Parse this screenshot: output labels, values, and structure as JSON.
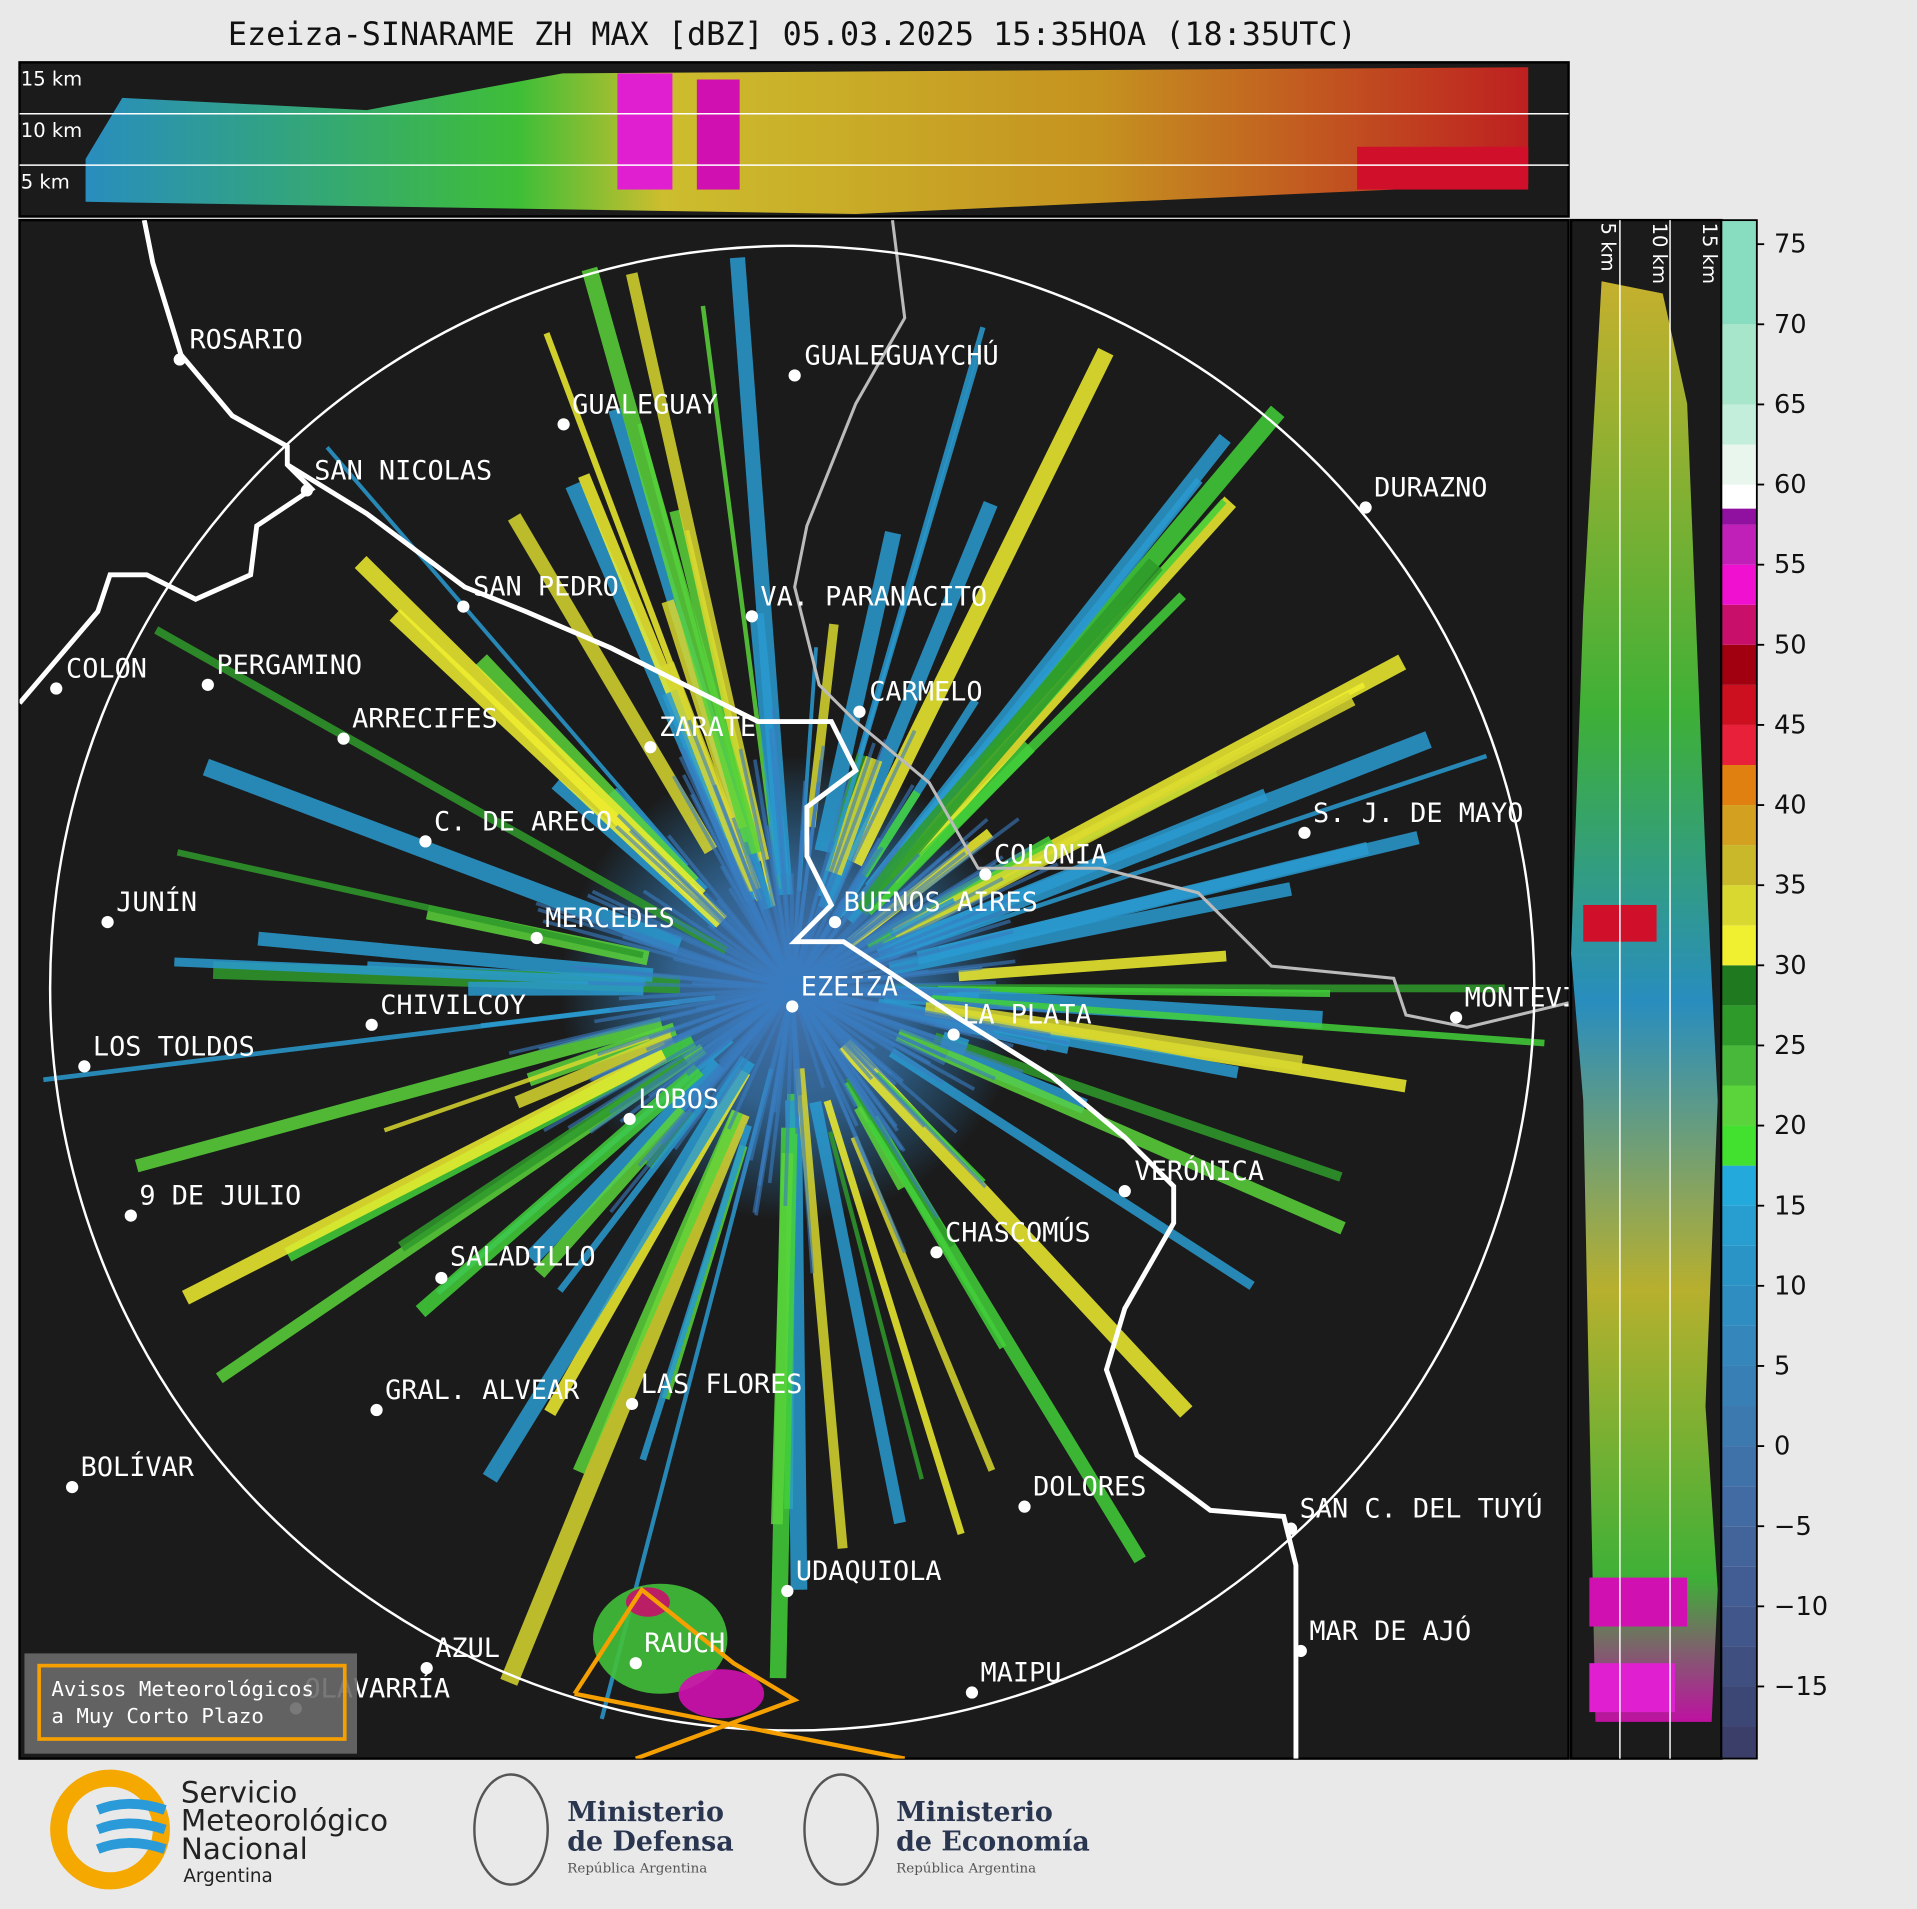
{
  "title": "Ezeiza-SINARAME ZH MAX [dBZ] 05.03.2025 15:35HOA (18:35UTC)",
  "top_panel": {
    "height_labels": [
      "15 km",
      "10 km",
      "5 km"
    ]
  },
  "side_panel": {
    "height_labels": [
      "5 km",
      "10 km",
      "15 km"
    ]
  },
  "cities": [
    "ROSARIO",
    "GUALEGUAYCHÚ",
    "GUALEGUAY",
    "SAN NICOLAS",
    "DURAZNO",
    "SAN PEDRO",
    "VA. PARANACITO",
    "COLON",
    "PERGAMINO",
    "CARMELO",
    "ARRECIFES",
    "ZARATE",
    "C. DE ARECO",
    "S. J. DE MAYO",
    "COLONIA",
    "JUNÍN",
    "BUENOS AIRES",
    "MERCEDES",
    "EZEIZA",
    "MONTEVIDEO",
    "CHIVILCOY",
    "LA PLATA",
    "LOS TOLDOS",
    "LOBOS",
    "VERÓNICA",
    "9 DE JULIO",
    "CHASCOMÚS",
    "SALADILLO",
    "GRAL. ALVEAR",
    "LAS FLORES",
    "BOLÍVAR",
    "DOLORES",
    "SAN C. DEL TUYÚ",
    "UDAQUIOLA",
    "MAR DE AJÓ",
    "AZUL",
    "RAUCH",
    "OLAVARRÍA",
    "MAIPU"
  ],
  "colorbar": {
    "lim": [
      -19.5,
      76.5
    ],
    "ticks": [
      75,
      70,
      65,
      60,
      55,
      50,
      45,
      40,
      35,
      30,
      25,
      20,
      15,
      10,
      5,
      0,
      {
        "value": -5,
        "label": "−5"
      },
      {
        "value": -10,
        "label": "−10"
      },
      {
        "value": -15,
        "label": "−15"
      }
    ],
    "bands": [
      {
        "min": -19.5,
        "max": -17.5,
        "color": "#3a3e68"
      },
      {
        "min": -17.5,
        "max": -15,
        "color": "#3d4775"
      },
      {
        "min": -15,
        "max": -12.5,
        "color": "#3f4f80"
      },
      {
        "min": -12.5,
        "max": -10,
        "color": "#41568a"
      },
      {
        "min": -10,
        "max": -7.5,
        "color": "#425d93"
      },
      {
        "min": -7.5,
        "max": -5,
        "color": "#43649b"
      },
      {
        "min": -5,
        "max": -2.5,
        "color": "#416ba2"
      },
      {
        "min": -2.5,
        "max": 0,
        "color": "#3f72a9"
      },
      {
        "min": 0,
        "max": 2.5,
        "color": "#3c79af"
      },
      {
        "min": 2.5,
        "max": 5,
        "color": "#387fb5"
      },
      {
        "min": 5,
        "max": 7.5,
        "color": "#3486bb"
      },
      {
        "min": 7.5,
        "max": 10,
        "color": "#2f8dc1"
      },
      {
        "min": 10,
        "max": 12.5,
        "color": "#2b94c7"
      },
      {
        "min": 12.5,
        "max": 15,
        "color": "#279dd0"
      },
      {
        "min": 15,
        "max": 17.5,
        "color": "#23a9dc"
      },
      {
        "min": 17.5,
        "max": 20,
        "color": "#42e02f"
      },
      {
        "min": 20,
        "max": 22.5,
        "color": "#5ad43a"
      },
      {
        "min": 22.5,
        "max": 25,
        "color": "#48b83a"
      },
      {
        "min": 25,
        "max": 27.5,
        "color": "#2e9a2a"
      },
      {
        "min": 27.5,
        "max": 30,
        "color": "#1f7a1f"
      },
      {
        "min": 30,
        "max": 32.5,
        "color": "#f0ef30"
      },
      {
        "min": 32.5,
        "max": 35,
        "color": "#d8d830"
      },
      {
        "min": 35,
        "max": 37.5,
        "color": "#c8b82a"
      },
      {
        "min": 37.5,
        "max": 40,
        "color": "#d4a020"
      },
      {
        "min": 40,
        "max": 42.5,
        "color": "#e08010"
      },
      {
        "min": 42.5,
        "max": 45,
        "color": "#e8203a"
      },
      {
        "min": 45,
        "max": 47.5,
        "color": "#cc1020"
      },
      {
        "min": 47.5,
        "max": 50,
        "color": "#a00010"
      },
      {
        "min": 50,
        "max": 52.5,
        "color": "#c8106a"
      },
      {
        "min": 52.5,
        "max": 55,
        "color": "#f010d0"
      },
      {
        "min": 55,
        "max": 57.5,
        "color": "#c020b8"
      },
      {
        "min": 57.5,
        "max": 58.5,
        "color": "#9010a0"
      },
      {
        "min": 58.5,
        "max": 60,
        "color": "#ffffff"
      },
      {
        "min": 60,
        "max": 62.5,
        "color": "#e8f6ee"
      },
      {
        "min": 62.5,
        "max": 65,
        "color": "#c4eedc"
      },
      {
        "min": 65,
        "max": 70,
        "color": "#a8e6cc"
      },
      {
        "min": 70,
        "max": 76.5,
        "color": "#88dcc0"
      }
    ]
  },
  "alert": {
    "lines": [
      "Avisos Meteorológicos",
      "a Muy Corto Plazo"
    ]
  },
  "logos": {
    "smn": [
      "Servicio",
      "Meteorológico",
      "Nacional",
      "Argentina"
    ],
    "defensa": [
      "Ministerio",
      "de Defensa",
      "República Argentina"
    ],
    "economia": [
      "Ministerio",
      "de Economía",
      "República Argentina"
    ]
  }
}
